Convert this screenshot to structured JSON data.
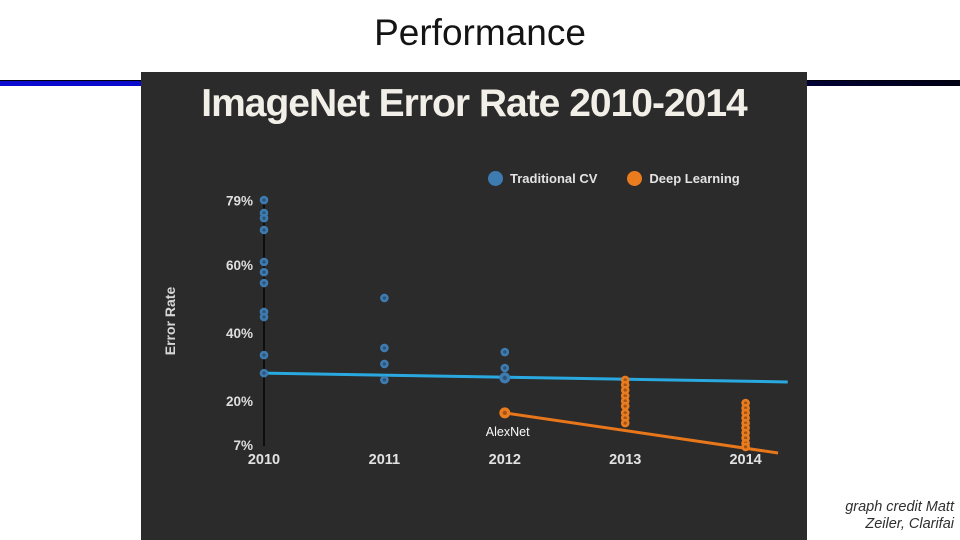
{
  "slide": {
    "title": "Performance"
  },
  "chart": {
    "title": "ImageNet Error Rate 2010-2014",
    "legend": [
      {
        "label": "Traditional CV",
        "color": "#3e7bb1"
      },
      {
        "label": "Deep Learning",
        "color": "#ea7c1f"
      }
    ]
  },
  "credit": {
    "line1": "graph credit Matt",
    "line2": "Zeiler, Clarifai"
  },
  "chart_data": {
    "type": "scatter",
    "title": "ImageNet Error Rate 2010-2014",
    "xlabel": "",
    "ylabel": "Error Rate",
    "categories": [
      2010,
      2011,
      2012,
      2013,
      2014
    ],
    "y_ticks_pct": [
      79,
      60,
      40,
      20,
      7
    ],
    "ylim": [
      0,
      85
    ],
    "grid": false,
    "legend_position": "top",
    "annotation": {
      "label": "AlexNet",
      "x": 2012,
      "y": 16.5
    },
    "series": [
      {
        "name": "Traditional CV",
        "color": "#3e7bb1",
        "trend_color": "#2aa9e0",
        "trend": [
          [
            2010,
            28.2
          ],
          [
            2014.35,
            25.6
          ]
        ],
        "points": [
          [
            2010,
            79.1
          ],
          [
            2010,
            75.3
          ],
          [
            2010,
            73.8
          ],
          [
            2010,
            70.3
          ],
          [
            2010,
            60.9
          ],
          [
            2010,
            57.9
          ],
          [
            2010,
            54.7
          ],
          [
            2010,
            46.2
          ],
          [
            2010,
            44.7
          ],
          [
            2010,
            33.5
          ],
          [
            2010,
            28.2
          ],
          [
            2011,
            50.3
          ],
          [
            2011,
            35.6
          ],
          [
            2011,
            30.9
          ],
          [
            2011,
            26.2
          ],
          [
            2012,
            34.4
          ],
          [
            2012,
            29.7
          ],
          [
            2012,
            26.8,
            5.5
          ]
        ]
      },
      {
        "name": "Deep Learning",
        "color": "#ea7c1f",
        "trend_color": "#e8761a",
        "trend": [
          [
            2012,
            16.5
          ],
          [
            2014.27,
            4.7
          ]
        ],
        "points": [
          [
            2012,
            16.5,
            5.5
          ],
          [
            2013,
            26.2
          ],
          [
            2013,
            24.7
          ],
          [
            2013,
            23.2
          ],
          [
            2013,
            21.5
          ],
          [
            2013,
            20.0
          ],
          [
            2013,
            18.5
          ],
          [
            2013,
            16.5
          ],
          [
            2013,
            15.0
          ],
          [
            2013,
            13.5
          ],
          [
            2014,
            19.4
          ],
          [
            2014,
            17.9
          ],
          [
            2014,
            16.5
          ],
          [
            2014,
            15.0
          ],
          [
            2014,
            13.5
          ],
          [
            2014,
            12.1
          ],
          [
            2014,
            10.6
          ],
          [
            2014,
            9.1
          ],
          [
            2014,
            7.6
          ],
          [
            2014,
            6.5
          ]
        ]
      }
    ]
  }
}
